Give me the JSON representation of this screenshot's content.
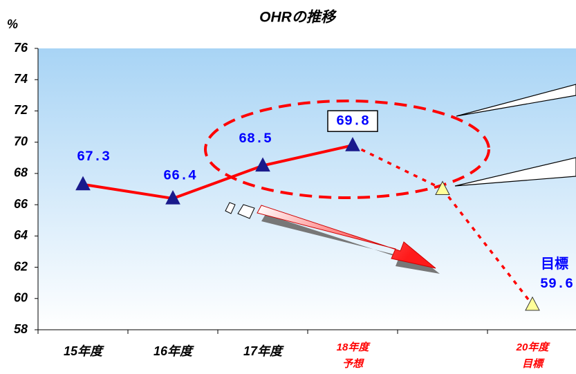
{
  "chart_data": {
    "type": "line",
    "title": "OHRの推移",
    "y_label": "%",
    "categories": [
      "15年度",
      "16年度",
      "17年度",
      "18年度\n予想",
      null,
      "20年度\n目標"
    ],
    "category_colors": [
      "#000000",
      "#000000",
      "#000000",
      "#ff0000",
      "#000000",
      "#ff0000"
    ],
    "values": [
      67.3,
      66.4,
      68.5,
      69.8,
      67.0,
      59.6
    ],
    "projected": [
      false,
      false,
      false,
      false,
      true,
      true
    ],
    "show_labels": [
      true,
      true,
      true,
      true,
      false,
      true
    ],
    "color": "#ff0000",
    "marker_color": "#1a1a8c",
    "projected_marker_color": "#ffff99",
    "label_color": "#0000ff",
    "annotation": "目標",
    "ylim": [
      58,
      76
    ],
    "yticks": [
      58,
      60,
      62,
      64,
      66,
      68,
      70,
      72,
      74,
      76
    ]
  }
}
